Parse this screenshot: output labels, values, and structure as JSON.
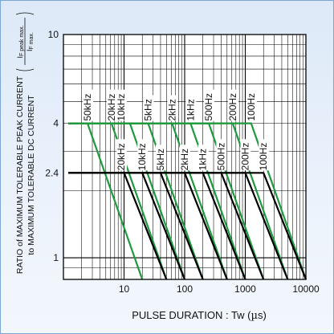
{
  "chart_data": {
    "type": "line",
    "title": "",
    "xlabel": "PULSE DURATION : Tw (µs)",
    "xlabel_parts": {
      "text": "PULSE DURATION : Tw (",
      "mu": "µ",
      "unit": "s)"
    },
    "ylabel": {
      "line1": "RATIO of MAXIMUM TOLERABLE PEAK CURRENT",
      "line2": "to MAXIMUM TOLERABLE DC CURRENT",
      "ratio_numerator": "I F peak max.",
      "ratio_denominator": "I F max.",
      "num_main": "I",
      "num_sub": "F peak max.",
      "den_main": "I",
      "den_sub": "F max."
    },
    "x_scale": "log",
    "y_scale": "log",
    "xlim": [
      1,
      10000
    ],
    "ylim": [
      0.8,
      10
    ],
    "x_ticks": [
      {
        "value": 10,
        "label": "10"
      },
      {
        "value": 100,
        "label": "100"
      },
      {
        "value": 1000,
        "label": "1000"
      },
      {
        "value": 10000,
        "label": "10000"
      }
    ],
    "y_ticks": [
      {
        "value": 1,
        "label": "1"
      },
      {
        "value": 2.4,
        "label": "2.4"
      },
      {
        "value": 4,
        "label": "4"
      },
      {
        "value": 10,
        "label": "10"
      }
    ],
    "grid": true,
    "colors": {
      "green": "#1e9a3c",
      "black": "#000000",
      "frame": "#7aa6d8"
    },
    "series": [
      {
        "name": "50kHz",
        "color": "green",
        "points": [
          [
            1.2,
            4
          ],
          [
            2.5,
            4
          ],
          [
            20,
            0.8
          ]
        ]
      },
      {
        "name": "20kHz",
        "color": "green",
        "points": [
          [
            1.2,
            4
          ],
          [
            6.2,
            4
          ],
          [
            50,
            0.8
          ]
        ]
      },
      {
        "name": "10kHz",
        "color": "green",
        "points": [
          [
            1.2,
            4
          ],
          [
            12.5,
            4
          ],
          [
            100,
            0.8
          ]
        ]
      },
      {
        "name": "5kHz",
        "color": "green",
        "points": [
          [
            1.2,
            4
          ],
          [
            25,
            4
          ],
          [
            200,
            0.8
          ]
        ]
      },
      {
        "name": "2kHz",
        "color": "green",
        "points": [
          [
            1.2,
            4
          ],
          [
            62,
            4
          ],
          [
            500,
            0.8
          ]
        ]
      },
      {
        "name": "1kHz",
        "color": "green",
        "points": [
          [
            1.2,
            4
          ],
          [
            125,
            4
          ],
          [
            1000,
            0.8
          ]
        ]
      },
      {
        "name": "500Hz",
        "color": "green",
        "points": [
          [
            1.2,
            4
          ],
          [
            250,
            4
          ],
          [
            2000,
            0.8
          ]
        ]
      },
      {
        "name": "200Hz",
        "color": "green",
        "points": [
          [
            1.2,
            4
          ],
          [
            620,
            4
          ],
          [
            5000,
            0.8
          ]
        ]
      },
      {
        "name": "100Hz",
        "color": "green",
        "points": [
          [
            1.2,
            4
          ],
          [
            1250,
            4
          ],
          [
            10000,
            0.8
          ]
        ]
      },
      {
        "name": "20kHz",
        "color": "black",
        "points": [
          [
            1.2,
            2.4
          ],
          [
            10,
            2.4
          ],
          [
            50,
            0.8
          ]
        ]
      },
      {
        "name": "10kHz",
        "color": "black",
        "points": [
          [
            1.2,
            2.4
          ],
          [
            20,
            2.4
          ],
          [
            100,
            0.8
          ]
        ]
      },
      {
        "name": "5kHz",
        "color": "black",
        "points": [
          [
            1.2,
            2.4
          ],
          [
            40,
            2.4
          ],
          [
            200,
            0.8
          ]
        ]
      },
      {
        "name": "2kHz",
        "color": "black",
        "points": [
          [
            1.2,
            2.4
          ],
          [
            100,
            2.4
          ],
          [
            500,
            0.8
          ]
        ]
      },
      {
        "name": "1kHz",
        "color": "black",
        "points": [
          [
            1.2,
            2.4
          ],
          [
            200,
            2.4
          ],
          [
            1000,
            0.8
          ]
        ]
      },
      {
        "name": "500Hz",
        "color": "black",
        "points": [
          [
            1.2,
            2.4
          ],
          [
            400,
            2.4
          ],
          [
            2000,
            0.8
          ]
        ]
      },
      {
        "name": "200Hz",
        "color": "black",
        "points": [
          [
            1.2,
            2.4
          ],
          [
            1000,
            2.4
          ],
          [
            5000,
            0.8
          ]
        ]
      },
      {
        "name": "100Hz",
        "color": "black",
        "points": [
          [
            1.2,
            2.4
          ],
          [
            2000,
            2.4
          ],
          [
            10000,
            0.8
          ]
        ]
      }
    ],
    "annotations": {
      "upper_labels": [
        {
          "text": "50kHz",
          "x": 2.5
        },
        {
          "text": "20kHz",
          "x": 6.2
        },
        {
          "text": "10kHz",
          "x": 9
        },
        {
          "text": "5kHz",
          "x": 25
        },
        {
          "text": "2kHz",
          "x": 62
        },
        {
          "text": "1kHz",
          "x": 125
        },
        {
          "text": "500Hz",
          "x": 250
        },
        {
          "text": "200Hz",
          "x": 620
        },
        {
          "text": "100Hz",
          "x": 1250
        }
      ],
      "lower_labels": [
        {
          "text": "20kHz",
          "x": 9
        },
        {
          "text": "10kHz",
          "x": 20
        },
        {
          "text": "5kHz",
          "x": 40
        },
        {
          "text": "2kHz",
          "x": 100
        },
        {
          "text": "1kHz",
          "x": 200
        },
        {
          "text": "500Hz",
          "x": 400
        },
        {
          "text": "200Hz",
          "x": 1000
        },
        {
          "text": "100Hz",
          "x": 2000
        }
      ]
    }
  }
}
